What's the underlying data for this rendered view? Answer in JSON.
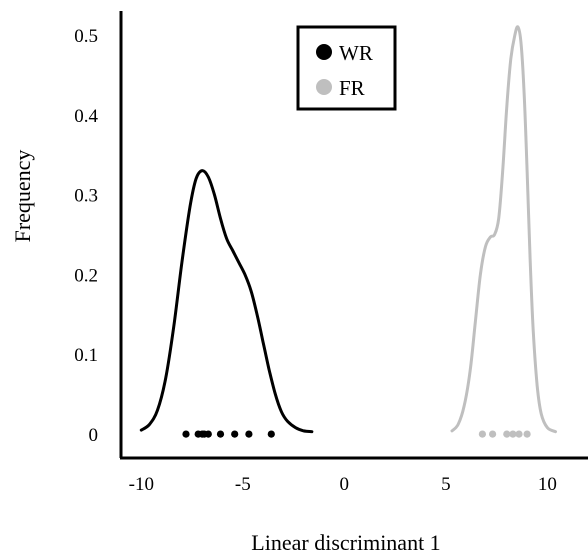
{
  "chart_data": {
    "type": "density",
    "title": "",
    "xlabel": "Linear discriminant 1",
    "ylabel": "Frequency",
    "xlim": [
      -11,
      12
    ],
    "ylim": [
      -0.03,
      0.53
    ],
    "xticks": [
      "-10",
      "-5",
      "0",
      "5",
      "10"
    ],
    "yticks": [
      "0",
      "0.1",
      "0.2",
      "0.3",
      "0.4",
      "0.5"
    ],
    "xtick_values": [
      -10,
      -5,
      0,
      5,
      10
    ],
    "ytick_values": [
      0,
      0.1,
      0.2,
      0.3,
      0.4,
      0.5
    ],
    "grid": false,
    "legend_position": "top-center",
    "series": [
      {
        "name": "WR",
        "color": "#000000",
        "curve": [
          [
            -10.0,
            0.005
          ],
          [
            -9.6,
            0.012
          ],
          [
            -9.2,
            0.03
          ],
          [
            -8.8,
            0.07
          ],
          [
            -8.4,
            0.135
          ],
          [
            -8.0,
            0.215
          ],
          [
            -7.6,
            0.285
          ],
          [
            -7.3,
            0.32
          ],
          [
            -7.0,
            0.33
          ],
          [
            -6.7,
            0.322
          ],
          [
            -6.4,
            0.3
          ],
          [
            -6.1,
            0.27
          ],
          [
            -5.8,
            0.245
          ],
          [
            -5.5,
            0.23
          ],
          [
            -5.2,
            0.215
          ],
          [
            -4.9,
            0.2
          ],
          [
            -4.6,
            0.18
          ],
          [
            -4.3,
            0.15
          ],
          [
            -4.0,
            0.115
          ],
          [
            -3.7,
            0.08
          ],
          [
            -3.4,
            0.05
          ],
          [
            -3.1,
            0.028
          ],
          [
            -2.8,
            0.016
          ],
          [
            -2.4,
            0.008
          ],
          [
            -2.0,
            0.004
          ],
          [
            -1.6,
            0.003
          ]
        ],
        "points": [
          -7.8,
          -7.2,
          -7.0,
          -6.9,
          -6.7,
          -6.1,
          -5.4,
          -4.7,
          -3.6
        ]
      },
      {
        "name": "FR",
        "color": "#bfbfbf",
        "curve": [
          [
            5.3,
            0.004
          ],
          [
            5.6,
            0.012
          ],
          [
            5.9,
            0.035
          ],
          [
            6.2,
            0.08
          ],
          [
            6.45,
            0.14
          ],
          [
            6.7,
            0.2
          ],
          [
            6.95,
            0.235
          ],
          [
            7.2,
            0.247
          ],
          [
            7.4,
            0.25
          ],
          [
            7.6,
            0.27
          ],
          [
            7.8,
            0.33
          ],
          [
            8.0,
            0.41
          ],
          [
            8.2,
            0.47
          ],
          [
            8.4,
            0.5
          ],
          [
            8.55,
            0.51
          ],
          [
            8.7,
            0.49
          ],
          [
            8.85,
            0.43
          ],
          [
            9.0,
            0.33
          ],
          [
            9.15,
            0.22
          ],
          [
            9.3,
            0.13
          ],
          [
            9.5,
            0.06
          ],
          [
            9.7,
            0.025
          ],
          [
            10.0,
            0.008
          ],
          [
            10.4,
            0.003
          ]
        ],
        "points": [
          6.8,
          7.3,
          8.0,
          8.3,
          8.6,
          9.0
        ]
      }
    ]
  }
}
